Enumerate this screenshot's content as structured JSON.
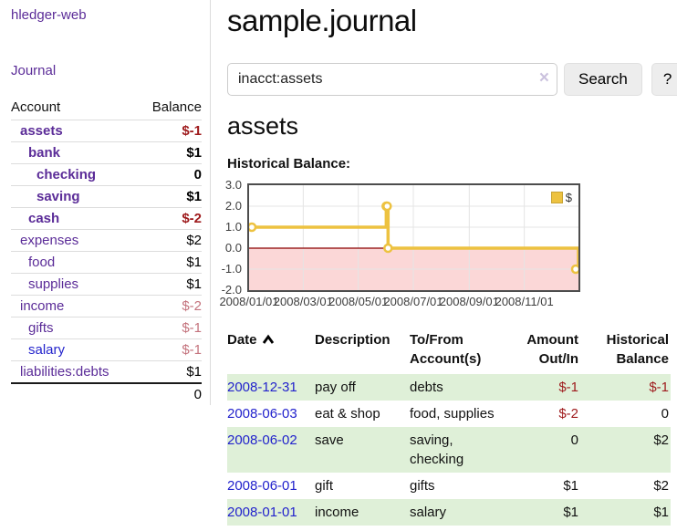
{
  "app": {
    "title": "hledger-web"
  },
  "sidebar": {
    "journal_label": "Journal",
    "account_header": "Account",
    "balance_header": "Balance",
    "accounts": [
      {
        "name": "assets",
        "balance": "$-1",
        "depth": 1
      },
      {
        "name": "bank",
        "balance": "$1",
        "depth": 2
      },
      {
        "name": "checking",
        "balance": "0",
        "depth": 3
      },
      {
        "name": "saving",
        "balance": "$1",
        "depth": 3
      },
      {
        "name": "cash",
        "balance": "$-2",
        "depth": 2
      },
      {
        "name": "expenses",
        "balance": "$2",
        "depth": 1
      },
      {
        "name": "food",
        "balance": "$1",
        "depth": 2
      },
      {
        "name": "supplies",
        "balance": "$1",
        "depth": 2
      },
      {
        "name": "income",
        "balance": "$-2",
        "depth": 1
      },
      {
        "name": "gifts",
        "balance": "$-1",
        "depth": 2
      },
      {
        "name": "salary",
        "balance": "$-1",
        "depth": 2
      },
      {
        "name": "liabilities:debts",
        "balance": "$1",
        "depth": 1
      }
    ],
    "total": "0"
  },
  "main": {
    "title": "sample.journal",
    "search": {
      "value": "inacct:assets",
      "clear_icon": "×",
      "button_label": "Search",
      "help_label": "?"
    },
    "account_heading": "assets",
    "chart_heading": "Historical Balance:"
  },
  "chart_data": {
    "type": "line",
    "title": "Historical Balance:",
    "step": true,
    "x_range": [
      "2008-01-01",
      "2008-12-31"
    ],
    "ylim": [
      -2.0,
      3.0
    ],
    "y_ticks": [
      "3.0",
      "2.0",
      "1.0",
      "0.0",
      "-1.0",
      "-2.0"
    ],
    "x_ticks": [
      "2008/01/01",
      "2008/03/01",
      "2008/05/01",
      "2008/07/01",
      "2008/09/01",
      "2008/11/01"
    ],
    "series": [
      {
        "name": "$",
        "color": "#edc240",
        "points": [
          {
            "date": "2008-01-01",
            "value": 1
          },
          {
            "date": "2008-06-01",
            "value": 2
          },
          {
            "date": "2008-06-02",
            "value": 2
          },
          {
            "date": "2008-06-03",
            "value": 0
          },
          {
            "date": "2008-12-31",
            "value": -1
          }
        ]
      }
    ],
    "legend_position": "top-right",
    "grid": true,
    "negative_fill": "#fbd7d7",
    "zero_line_color": "#8b0000",
    "grid_color": "#e4e4e4"
  },
  "register": {
    "headers": {
      "date": "Date",
      "description": "Description",
      "accounts": "To/From Account(s)",
      "amount": "Amount Out/In",
      "balance": "Historical Balance"
    },
    "sort": "ascending",
    "rows": [
      {
        "date": "2008-12-31",
        "description": "pay off",
        "accounts": "debts",
        "amount": "$-1",
        "balance": "$-1"
      },
      {
        "date": "2008-06-03",
        "description": "eat & shop",
        "accounts": "food, supplies",
        "amount": "$-2",
        "balance": "0"
      },
      {
        "date": "2008-06-02",
        "description": "save",
        "accounts": "saving, checking",
        "amount": "0",
        "balance": "$2"
      },
      {
        "date": "2008-06-01",
        "description": "gift",
        "accounts": "gifts",
        "amount": "$1",
        "balance": "$2"
      },
      {
        "date": "2008-01-01",
        "description": "income",
        "accounts": "salary",
        "amount": "$1",
        "balance": "$1"
      }
    ]
  },
  "colors": {
    "link_purple": "#5b2c98",
    "link_blue": "#2424cc",
    "negative_strong": "#9e1a1c",
    "negative_light": "#c4737d",
    "row_green": "#dff0d8",
    "series_gold": "#edc240"
  }
}
